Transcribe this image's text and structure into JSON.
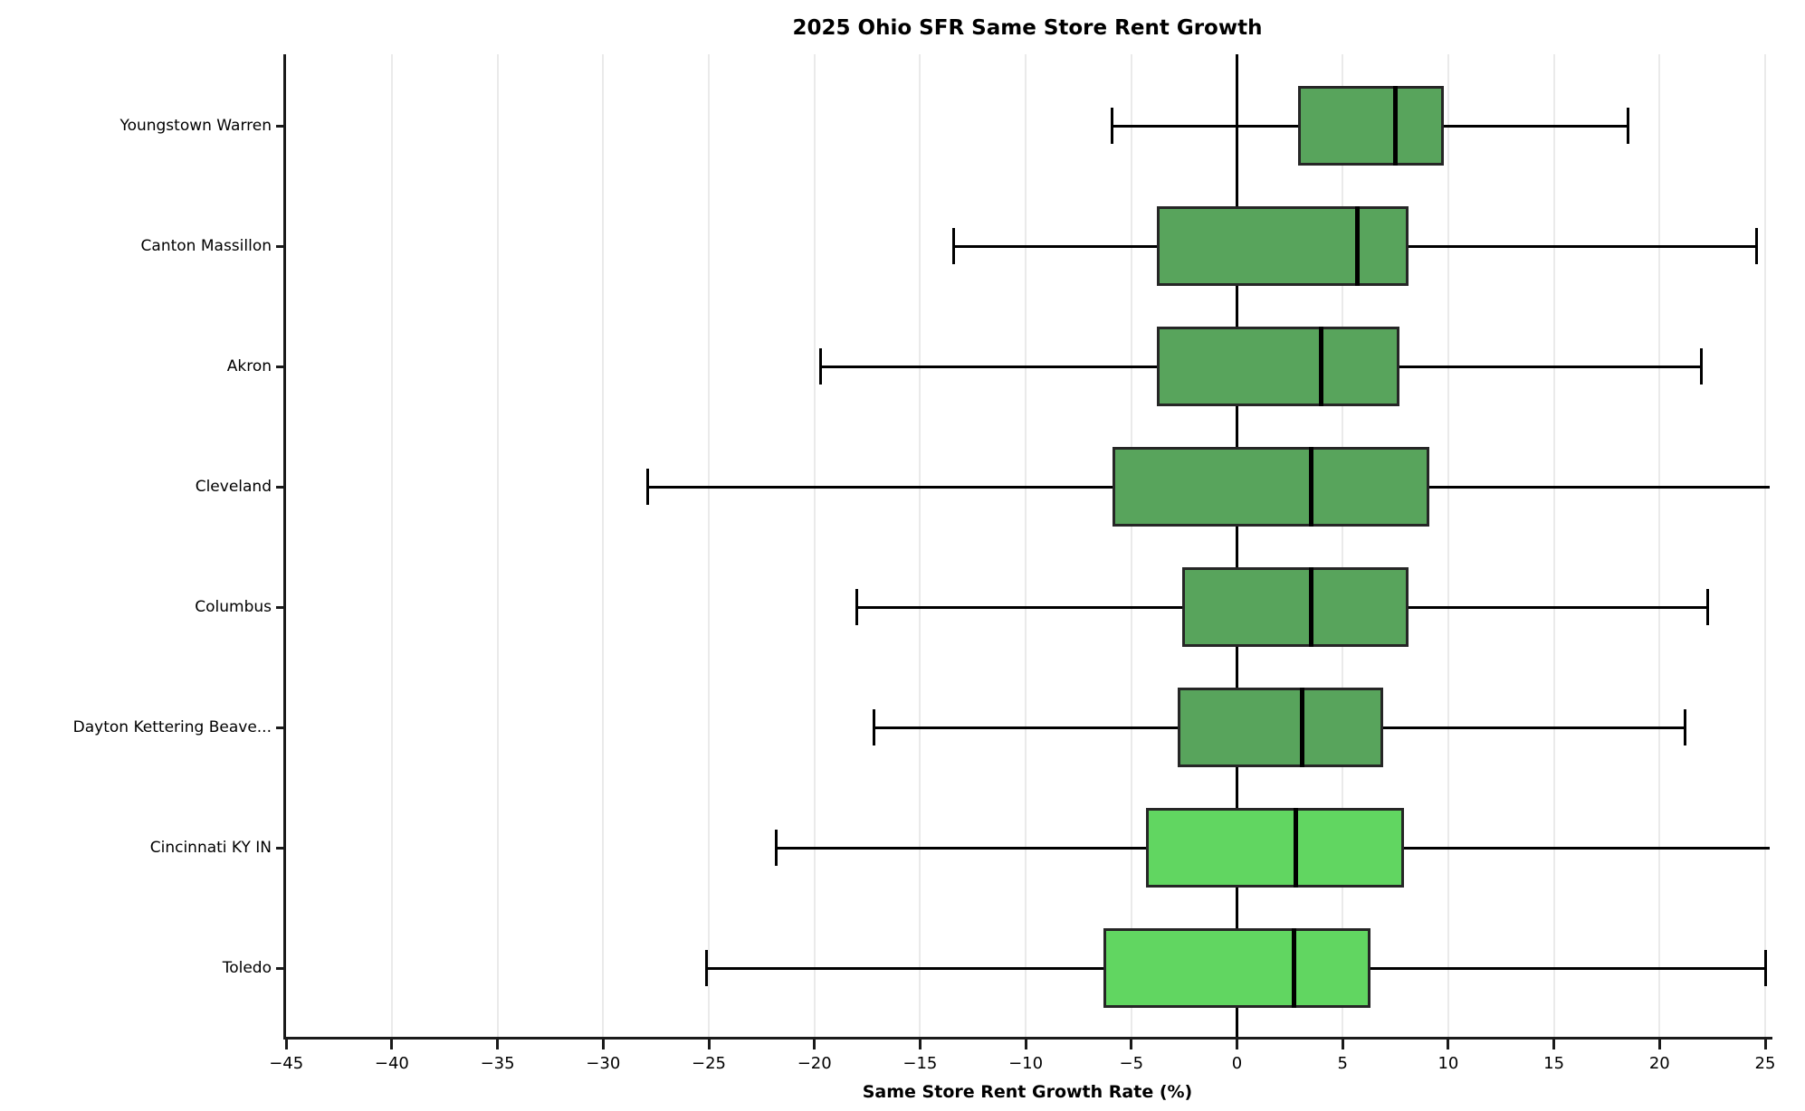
{
  "chart_data": {
    "type": "boxplot",
    "orientation": "horizontal",
    "title": "2025 Ohio SFR Same Store Rent Growth",
    "xlabel": "Same Store Rent Growth Rate (%)",
    "xlim": [
      -45,
      25.2
    ],
    "xticks": [
      -45,
      -40,
      -35,
      -30,
      -25,
      -20,
      -15,
      -10,
      -5,
      0,
      5,
      10,
      15,
      20,
      25
    ],
    "grid": "vertical-light",
    "zero_reference_line": 0,
    "categories_top_to_bottom": [
      "Youngstown Warren",
      "Canton Massillon",
      "Akron",
      "Cleveland",
      "Columbus",
      "Dayton Kettering Beave...",
      "Cincinnati KY IN",
      "Toledo"
    ],
    "series": [
      {
        "label": "Youngstown Warren",
        "whislo": -5.9,
        "q1": 2.9,
        "med": 7.5,
        "q3": 9.8,
        "whishi": 18.5,
        "cap_lo": true,
        "cap_hi": true,
        "box_color": "#58a45c"
      },
      {
        "label": "Canton Massillon",
        "whislo": -13.4,
        "q1": -3.8,
        "med": 5.7,
        "q3": 8.1,
        "whishi": 24.6,
        "cap_lo": true,
        "cap_hi": true,
        "box_color": "#58a45c"
      },
      {
        "label": "Akron",
        "whislo": -19.7,
        "q1": -3.8,
        "med": 4.0,
        "q3": 7.7,
        "whishi": 22.0,
        "cap_lo": true,
        "cap_hi": true,
        "box_color": "#58a45c"
      },
      {
        "label": "Cleveland",
        "whislo": -27.9,
        "q1": -5.9,
        "med": 3.5,
        "q3": 9.1,
        "whishi": 25.2,
        "cap_lo": true,
        "cap_hi": false,
        "box_color": "#58a45c"
      },
      {
        "label": "Columbus",
        "whislo": -18.0,
        "q1": -2.6,
        "med": 3.5,
        "q3": 8.1,
        "whishi": 22.3,
        "cap_lo": true,
        "cap_hi": true,
        "box_color": "#58a45c"
      },
      {
        "label": "Dayton Kettering Beave...",
        "whislo": -17.2,
        "q1": -2.8,
        "med": 3.1,
        "q3": 6.9,
        "whishi": 21.2,
        "cap_lo": true,
        "cap_hi": true,
        "box_color": "#58a45c"
      },
      {
        "label": "Cincinnati KY IN",
        "whislo": -21.8,
        "q1": -4.3,
        "med": 2.8,
        "q3": 7.9,
        "whishi": 25.2,
        "cap_lo": true,
        "cap_hi": false,
        "box_color": "#61d661"
      },
      {
        "label": "Toledo",
        "whislo": -25.1,
        "q1": -6.3,
        "med": 2.7,
        "q3": 6.3,
        "whishi": 25.0,
        "cap_lo": true,
        "cap_hi": true,
        "box_color": "#61d661"
      }
    ],
    "colors": {
      "box_fill_default": "#58a45c",
      "box_fill_light": "#61d661",
      "box_edge": "#262626",
      "median": "#000000",
      "whisker": "#000000",
      "grid": "#eaeaea",
      "spine": "#1a1a1a",
      "zero_line": "#000000",
      "background": "#ffffff"
    }
  }
}
